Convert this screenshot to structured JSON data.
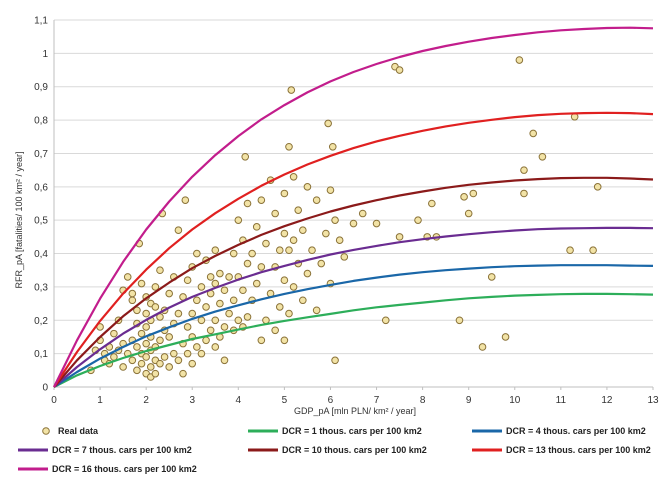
{
  "chart_data": {
    "type": "scatter",
    "title": "",
    "xlabel": "GDP_pA [mln PLN/ km² / year]",
    "ylabel": "RFR_pA [fatalities/ 100 km² / year]",
    "xlim": [
      0,
      13
    ],
    "ylim": [
      0,
      1.1
    ],
    "x_ticks": [
      "0",
      "1",
      "2",
      "3",
      "4",
      "5",
      "6",
      "7",
      "8",
      "9",
      "10",
      "11",
      "12",
      "13"
    ],
    "y_ticks": [
      "0",
      "0,1",
      "0,2",
      "0,3",
      "0,4",
      "0,5",
      "0,6",
      "0,7",
      "0,8",
      "0,9",
      "1",
      "1,1"
    ],
    "grid": true,
    "legend_position": "bottom",
    "colors": {
      "points_fill": "#f2e3a6",
      "points_stroke": "#8a7238",
      "grid": "#d9d9d9",
      "axis": "#bfbfbf"
    },
    "scatter": {
      "name": "Real data",
      "points": [
        [
          0.8,
          0.05
        ],
        [
          0.9,
          0.11
        ],
        [
          1.0,
          0.14
        ],
        [
          1.0,
          0.18
        ],
        [
          1.1,
          0.08
        ],
        [
          1.1,
          0.1
        ],
        [
          1.2,
          0.12
        ],
        [
          1.2,
          0.07
        ],
        [
          1.3,
          0.09
        ],
        [
          1.3,
          0.16
        ],
        [
          1.4,
          0.11
        ],
        [
          1.4,
          0.2
        ],
        [
          1.5,
          0.06
        ],
        [
          1.5,
          0.13
        ],
        [
          1.5,
          0.29
        ],
        [
          1.6,
          0.1
        ],
        [
          1.6,
          0.33
        ],
        [
          1.7,
          0.08
        ],
        [
          1.7,
          0.14
        ],
        [
          1.7,
          0.26
        ],
        [
          1.7,
          0.28
        ],
        [
          1.8,
          0.05
        ],
        [
          1.8,
          0.12
        ],
        [
          1.8,
          0.19
        ],
        [
          1.8,
          0.23
        ],
        [
          1.85,
          0.43
        ],
        [
          1.9,
          0.07
        ],
        [
          1.9,
          0.1
        ],
        [
          1.9,
          0.16
        ],
        [
          1.9,
          0.31
        ],
        [
          2.0,
          0.04
        ],
        [
          2.0,
          0.09
        ],
        [
          2.0,
          0.13
        ],
        [
          2.0,
          0.18
        ],
        [
          2.0,
          0.22
        ],
        [
          2.0,
          0.27
        ],
        [
          2.1,
          0.03
        ],
        [
          2.1,
          0.06
        ],
        [
          2.1,
          0.11
        ],
        [
          2.1,
          0.15
        ],
        [
          2.1,
          0.2
        ],
        [
          2.1,
          0.25
        ],
        [
          2.2,
          0.04
        ],
        [
          2.2,
          0.08
        ],
        [
          2.2,
          0.12
        ],
        [
          2.2,
          0.24
        ],
        [
          2.2,
          0.3
        ],
        [
          2.3,
          0.07
        ],
        [
          2.3,
          0.14
        ],
        [
          2.3,
          0.21
        ],
        [
          2.3,
          0.35
        ],
        [
          2.35,
          0.52
        ],
        [
          2.4,
          0.09
        ],
        [
          2.4,
          0.17
        ],
        [
          2.4,
          0.23
        ],
        [
          2.5,
          0.06
        ],
        [
          2.5,
          0.15
        ],
        [
          2.5,
          0.28
        ],
        [
          2.6,
          0.1
        ],
        [
          2.6,
          0.19
        ],
        [
          2.6,
          0.33
        ],
        [
          2.7,
          0.08
        ],
        [
          2.7,
          0.22
        ],
        [
          2.7,
          0.47
        ],
        [
          2.8,
          0.04
        ],
        [
          2.8,
          0.13
        ],
        [
          2.8,
          0.27
        ],
        [
          2.85,
          0.56
        ],
        [
          2.9,
          0.1
        ],
        [
          2.9,
          0.18
        ],
        [
          2.9,
          0.32
        ],
        [
          3.0,
          0.07
        ],
        [
          3.0,
          0.15
        ],
        [
          3.0,
          0.22
        ],
        [
          3.0,
          0.36
        ],
        [
          3.1,
          0.12
        ],
        [
          3.1,
          0.26
        ],
        [
          3.1,
          0.4
        ],
        [
          3.2,
          0.1
        ],
        [
          3.2,
          0.2
        ],
        [
          3.2,
          0.3
        ],
        [
          3.3,
          0.14
        ],
        [
          3.3,
          0.24
        ],
        [
          3.3,
          0.38
        ],
        [
          3.4,
          0.17
        ],
        [
          3.4,
          0.28
        ],
        [
          3.4,
          0.33
        ],
        [
          3.5,
          0.12
        ],
        [
          3.5,
          0.2
        ],
        [
          3.5,
          0.31
        ],
        [
          3.5,
          0.41
        ],
        [
          3.6,
          0.15
        ],
        [
          3.6,
          0.25
        ],
        [
          3.6,
          0.34
        ],
        [
          3.7,
          0.08
        ],
        [
          3.7,
          0.18
        ],
        [
          3.7,
          0.29
        ],
        [
          3.8,
          0.22
        ],
        [
          3.8,
          0.33
        ],
        [
          3.9,
          0.17
        ],
        [
          3.9,
          0.26
        ],
        [
          3.9,
          0.4
        ],
        [
          4.0,
          0.2
        ],
        [
          4.0,
          0.33
        ],
        [
          4.0,
          0.5
        ],
        [
          4.1,
          0.18
        ],
        [
          4.1,
          0.29
        ],
        [
          4.1,
          0.44
        ],
        [
          4.15,
          0.69
        ],
        [
          4.2,
          0.21
        ],
        [
          4.2,
          0.37
        ],
        [
          4.2,
          0.55
        ],
        [
          4.3,
          0.26
        ],
        [
          4.3,
          0.4
        ],
        [
          4.4,
          0.31
        ],
        [
          4.4,
          0.48
        ],
        [
          4.5,
          0.14
        ],
        [
          4.5,
          0.36
        ],
        [
          4.5,
          0.56
        ],
        [
          4.6,
          0.2
        ],
        [
          4.6,
          0.43
        ],
        [
          4.7,
          0.28
        ],
        [
          4.7,
          0.62
        ],
        [
          4.8,
          0.17
        ],
        [
          4.8,
          0.36
        ],
        [
          4.8,
          0.52
        ],
        [
          4.9,
          0.24
        ],
        [
          4.9,
          0.41
        ],
        [
          5.0,
          0.14
        ],
        [
          5.0,
          0.32
        ],
        [
          5.0,
          0.46
        ],
        [
          5.0,
          0.58
        ],
        [
          5.1,
          0.22
        ],
        [
          5.1,
          0.41
        ],
        [
          5.1,
          0.72
        ],
        [
          5.15,
          0.89
        ],
        [
          5.2,
          0.3
        ],
        [
          5.2,
          0.44
        ],
        [
          5.2,
          0.63
        ],
        [
          5.3,
          0.37
        ],
        [
          5.3,
          0.53
        ],
        [
          5.4,
          0.26
        ],
        [
          5.4,
          0.47
        ],
        [
          5.5,
          0.34
        ],
        [
          5.5,
          0.6
        ],
        [
          5.6,
          0.41
        ],
        [
          5.7,
          0.23
        ],
        [
          5.7,
          0.56
        ],
        [
          5.8,
          0.37
        ],
        [
          5.9,
          0.46
        ],
        [
          5.95,
          0.79
        ],
        [
          6.0,
          0.31
        ],
        [
          6.0,
          0.59
        ],
        [
          6.05,
          0.72
        ],
        [
          6.1,
          0.08
        ],
        [
          6.1,
          0.5
        ],
        [
          6.2,
          0.44
        ],
        [
          6.3,
          0.39
        ],
        [
          6.5,
          0.49
        ],
        [
          6.7,
          0.52
        ],
        [
          7.0,
          0.49
        ],
        [
          7.2,
          0.2
        ],
        [
          7.4,
          0.96
        ],
        [
          7.5,
          0.95
        ],
        [
          7.5,
          0.45
        ],
        [
          7.9,
          0.5
        ],
        [
          8.1,
          0.45
        ],
        [
          8.2,
          0.55
        ],
        [
          8.3,
          0.45
        ],
        [
          8.8,
          0.2
        ],
        [
          8.9,
          0.57
        ],
        [
          9.0,
          0.52
        ],
        [
          9.1,
          0.58
        ],
        [
          9.3,
          0.12
        ],
        [
          9.5,
          0.33
        ],
        [
          9.8,
          0.15
        ],
        [
          10.1,
          0.98
        ],
        [
          10.2,
          0.58
        ],
        [
          10.2,
          0.65
        ],
        [
          10.4,
          0.76
        ],
        [
          10.6,
          0.69
        ],
        [
          11.2,
          0.41
        ],
        [
          11.3,
          0.81
        ],
        [
          11.7,
          0.41
        ],
        [
          11.8,
          0.6
        ]
      ]
    },
    "series": [
      {
        "name": "DCR = 1 thous. cars per 100 km2",
        "color": "#2dae5a",
        "x": [
          0,
          0.5,
          1,
          1.5,
          2,
          2.5,
          3,
          3.5,
          4,
          4.5,
          5,
          5.5,
          6,
          6.5,
          7,
          7.5,
          8,
          8.5,
          9,
          9.5,
          10,
          10.5,
          11,
          11.5,
          12,
          12.5,
          13
        ],
        "y": [
          0,
          0.035,
          0.063,
          0.087,
          0.108,
          0.126,
          0.144,
          0.158,
          0.172,
          0.186,
          0.198,
          0.209,
          0.219,
          0.23,
          0.239,
          0.246,
          0.253,
          0.26,
          0.266,
          0.27,
          0.274,
          0.276,
          0.278,
          0.279,
          0.279,
          0.278,
          0.277
        ]
      },
      {
        "name": "DCR = 4 thous. cars per 100 km2",
        "color": "#1a67a8",
        "x": [
          0,
          0.5,
          1,
          1.5,
          2,
          2.5,
          3,
          3.5,
          4,
          4.5,
          5,
          5.5,
          6,
          6.5,
          7,
          7.5,
          8,
          8.5,
          9,
          9.5,
          10,
          10.5,
          11,
          11.5,
          12,
          12.5,
          13
        ],
        "y": [
          0,
          0.045,
          0.085,
          0.12,
          0.152,
          0.179,
          0.204,
          0.226,
          0.245,
          0.263,
          0.279,
          0.293,
          0.306,
          0.318,
          0.328,
          0.337,
          0.344,
          0.35,
          0.355,
          0.359,
          0.362,
          0.364,
          0.365,
          0.365,
          0.365,
          0.364,
          0.363
        ]
      },
      {
        "name": "DCR = 7 thous. cars per 100 km2",
        "color": "#6a2c91",
        "x": [
          0,
          0.5,
          1,
          1.5,
          2,
          2.5,
          3,
          3.5,
          4,
          4.5,
          5,
          5.5,
          6,
          6.5,
          7,
          7.5,
          8,
          8.5,
          9,
          9.5,
          10,
          10.5,
          11,
          11.5,
          12,
          12.5,
          13
        ],
        "y": [
          0,
          0.06,
          0.113,
          0.16,
          0.201,
          0.238,
          0.27,
          0.297,
          0.322,
          0.344,
          0.363,
          0.381,
          0.397,
          0.411,
          0.423,
          0.434,
          0.443,
          0.451,
          0.458,
          0.464,
          0.469,
          0.473,
          0.475,
          0.476,
          0.477,
          0.477,
          0.476
        ]
      },
      {
        "name": "DCR = 10 thous. cars per 100 km2",
        "color": "#8b1a1a",
        "x": [
          0,
          0.5,
          1,
          1.5,
          2,
          2.5,
          3,
          3.5,
          4,
          4.5,
          5,
          5.5,
          6,
          6.5,
          7,
          7.5,
          8,
          8.5,
          9,
          9.5,
          10,
          10.5,
          11,
          11.5,
          12,
          12.5,
          13
        ],
        "y": [
          0,
          0.08,
          0.15,
          0.212,
          0.266,
          0.313,
          0.356,
          0.393,
          0.426,
          0.456,
          0.482,
          0.505,
          0.526,
          0.544,
          0.56,
          0.574,
          0.586,
          0.597,
          0.606,
          0.613,
          0.619,
          0.623,
          0.626,
          0.627,
          0.627,
          0.625,
          0.622
        ]
      },
      {
        "name": "DCR = 13 thous. cars per 100 km2",
        "color": "#e02020",
        "x": [
          0,
          0.5,
          1,
          1.5,
          2,
          2.5,
          3,
          3.5,
          4,
          4.5,
          5,
          5.5,
          6,
          6.5,
          7,
          7.5,
          8,
          8.5,
          9,
          9.5,
          10,
          10.5,
          11,
          11.5,
          12,
          12.5,
          13
        ],
        "y": [
          0,
          0.105,
          0.198,
          0.28,
          0.352,
          0.416,
          0.472,
          0.521,
          0.564,
          0.603,
          0.637,
          0.667,
          0.693,
          0.716,
          0.736,
          0.753,
          0.768,
          0.781,
          0.792,
          0.801,
          0.809,
          0.815,
          0.819,
          0.821,
          0.822,
          0.821,
          0.818
        ]
      },
      {
        "name": "DCR = 16 thous. cars per 100 km2",
        "color": "#c21d8c",
        "x": [
          0,
          0.5,
          1,
          1.5,
          2,
          2.5,
          3,
          3.5,
          4,
          4.5,
          5,
          5.5,
          6,
          6.5,
          7,
          7.5,
          8,
          8.5,
          9,
          9.5,
          10,
          10.5,
          11,
          11.5,
          12,
          12.5,
          13
        ],
        "y": [
          0,
          0.14,
          0.265,
          0.375,
          0.472,
          0.556,
          0.63,
          0.695,
          0.752,
          0.802,
          0.845,
          0.883,
          0.916,
          0.944,
          0.968,
          0.989,
          1.007,
          1.022,
          1.035,
          1.046,
          1.055,
          1.063,
          1.069,
          1.073,
          1.076,
          1.077,
          1.075
        ]
      }
    ],
    "legend": [
      "Real data",
      "DCR = 1 thous. cars per 100 km2",
      "DCR = 4 thous. cars per 100 km2",
      "DCR = 7 thous. cars per 100 km2",
      "DCR = 10 thous. cars per 100 km2",
      "DCR = 13 thous. cars per 100 km2",
      "DCR = 16 thous. cars per 100 km2"
    ]
  }
}
